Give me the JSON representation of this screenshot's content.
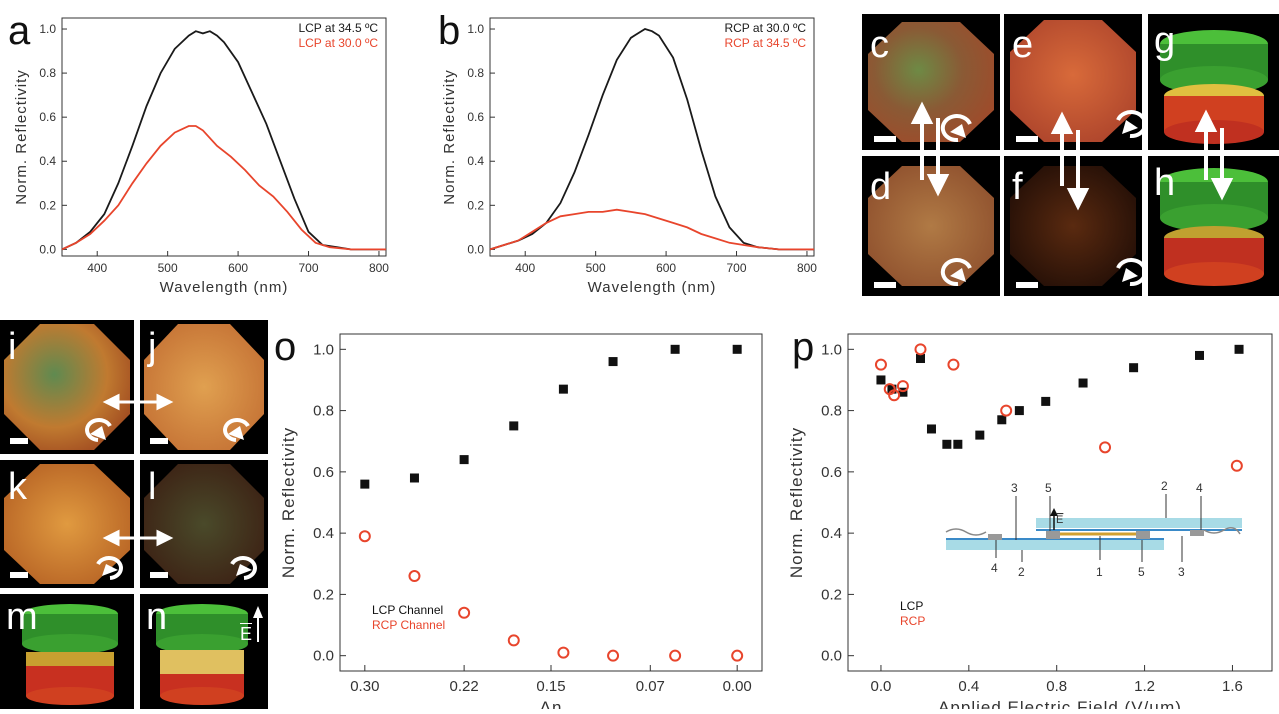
{
  "panel_labels": {
    "a": "a",
    "b": "b",
    "c": "c",
    "d": "d",
    "e": "e",
    "f": "f",
    "g": "g",
    "h": "h",
    "i": "i",
    "j": "j",
    "k": "k",
    "l": "l",
    "m": "m",
    "n": "n",
    "o": "o",
    "p": "p"
  },
  "e_field_label": "E",
  "colors": {
    "black": "#1a1a1a",
    "red": "#e8452c"
  },
  "chart_data": [
    {
      "id": "a",
      "type": "line",
      "xlabel": "Wavelength (nm)",
      "ylabel": "Norm. Reflectivity",
      "xlim": [
        350,
        810
      ],
      "ylim": [
        -0.03,
        1.05
      ],
      "xticks": [
        400,
        500,
        600,
        700,
        800
      ],
      "yticks": [
        0.0,
        0.2,
        0.4,
        0.6,
        0.8,
        1.0
      ],
      "legend": [
        "LCP at 34.5 ºC",
        "LCP at 30.0 ºC"
      ],
      "series": [
        {
          "name": "LCP at 34.5 ºC",
          "color": "#1a1a1a",
          "x": [
            350,
            370,
            390,
            410,
            430,
            450,
            470,
            490,
            510,
            530,
            540,
            550,
            560,
            570,
            580,
            600,
            620,
            640,
            660,
            680,
            700,
            720,
            740,
            760,
            780,
            800,
            810
          ],
          "y": [
            0.0,
            0.03,
            0.08,
            0.16,
            0.3,
            0.47,
            0.65,
            0.8,
            0.91,
            0.97,
            0.99,
            0.98,
            0.99,
            0.97,
            0.94,
            0.85,
            0.71,
            0.57,
            0.4,
            0.23,
            0.08,
            0.02,
            0.01,
            0.0,
            0.0,
            0.0,
            0.0
          ]
        },
        {
          "name": "LCP at 30.0 ºC",
          "color": "#e8452c",
          "x": [
            350,
            370,
            390,
            410,
            430,
            450,
            470,
            490,
            510,
            530,
            540,
            550,
            570,
            590,
            610,
            630,
            650,
            670,
            690,
            710,
            730,
            760,
            790,
            810
          ],
          "y": [
            0.0,
            0.03,
            0.07,
            0.13,
            0.2,
            0.3,
            0.39,
            0.47,
            0.53,
            0.56,
            0.56,
            0.54,
            0.47,
            0.42,
            0.36,
            0.29,
            0.24,
            0.17,
            0.09,
            0.03,
            0.01,
            0.0,
            0.0,
            0.0
          ]
        }
      ]
    },
    {
      "id": "b",
      "type": "line",
      "xlabel": "Wavelength (nm)",
      "ylabel": "Norm. Reflectivity",
      "xlim": [
        350,
        810
      ],
      "ylim": [
        -0.03,
        1.05
      ],
      "xticks": [
        400,
        500,
        600,
        700,
        800
      ],
      "yticks": [
        0.0,
        0.2,
        0.4,
        0.6,
        0.8,
        1.0
      ],
      "legend": [
        "RCP at 30.0 ºC",
        "RCP at 34.5 ºC"
      ],
      "series": [
        {
          "name": "RCP at 30.0 ºC",
          "color": "#1a1a1a",
          "x": [
            350,
            370,
            390,
            410,
            430,
            450,
            470,
            490,
            510,
            530,
            550,
            570,
            580,
            590,
            610,
            630,
            650,
            670,
            690,
            710,
            730,
            760,
            790,
            810
          ],
          "y": [
            0.0,
            0.02,
            0.04,
            0.07,
            0.12,
            0.21,
            0.35,
            0.52,
            0.7,
            0.86,
            0.96,
            1.0,
            0.99,
            0.97,
            0.87,
            0.68,
            0.45,
            0.24,
            0.1,
            0.03,
            0.01,
            0.0,
            0.0,
            0.0
          ]
        },
        {
          "name": "RCP at 34.5 ºC",
          "color": "#e8452c",
          "x": [
            350,
            370,
            390,
            410,
            430,
            450,
            470,
            490,
            510,
            530,
            550,
            570,
            590,
            610,
            630,
            650,
            670,
            690,
            710,
            730,
            760,
            790,
            810
          ],
          "y": [
            0.0,
            0.02,
            0.04,
            0.08,
            0.12,
            0.15,
            0.16,
            0.17,
            0.17,
            0.18,
            0.17,
            0.16,
            0.14,
            0.12,
            0.1,
            0.07,
            0.05,
            0.03,
            0.02,
            0.01,
            0.0,
            0.0,
            0.0
          ]
        }
      ]
    },
    {
      "id": "o",
      "type": "scatter",
      "xlabel": "Δn",
      "ylabel": "Norm. Reflectivity",
      "xticks": [
        "0.30",
        "0.22",
        "0.15",
        "0.07",
        "0.00"
      ],
      "yticks": [
        0.0,
        0.2,
        0.4,
        0.6,
        0.8,
        1.0
      ],
      "ylim": [
        -0.05,
        1.05
      ],
      "legend": [
        "LCP Channel",
        "RCP Channel"
      ],
      "series": [
        {
          "name": "LCP Channel",
          "marker": "square",
          "color": "#111111",
          "x": [
            0.3,
            0.26,
            0.22,
            0.18,
            0.14,
            0.1,
            0.05,
            0.0
          ],
          "y": [
            0.56,
            0.58,
            0.64,
            0.75,
            0.87,
            0.96,
            1.0,
            1.0
          ]
        },
        {
          "name": "RCP Channel",
          "marker": "circle",
          "color": "#e8452c",
          "x": [
            0.3,
            0.26,
            0.22,
            0.18,
            0.14,
            0.1,
            0.05,
            0.0
          ],
          "y": [
            0.39,
            0.26,
            0.14,
            0.05,
            0.01,
            0.0,
            0.0,
            0.0
          ]
        }
      ]
    },
    {
      "id": "p",
      "type": "scatter",
      "xlabel": "Applied Electric Field (V/µm)",
      "ylabel": "Norm. Reflectivity",
      "xlim": [
        -0.15,
        1.78
      ],
      "ylim": [
        -0.05,
        1.05
      ],
      "xticks": [
        "0.0",
        "0.4",
        "0.8",
        "1.2",
        "1.6"
      ],
      "xtick_values": [
        0.0,
        0.4,
        0.8,
        1.2,
        1.6
      ],
      "yticks": [
        0.0,
        0.2,
        0.4,
        0.6,
        0.8,
        1.0
      ],
      "legend": [
        "LCP",
        "RCP"
      ],
      "series": [
        {
          "name": "LCP",
          "marker": "square",
          "color": "#111111",
          "x": [
            0.0,
            0.05,
            0.1,
            0.18,
            0.23,
            0.3,
            0.35,
            0.45,
            0.55,
            0.63,
            0.75,
            0.92,
            1.15,
            1.45,
            1.63
          ],
          "y": [
            0.9,
            0.87,
            0.86,
            0.97,
            0.74,
            0.69,
            0.69,
            0.72,
            0.77,
            0.8,
            0.83,
            0.89,
            0.94,
            0.98,
            1.0
          ]
        },
        {
          "name": "RCP",
          "marker": "circle",
          "color": "#e8452c",
          "x": [
            0.0,
            0.04,
            0.06,
            0.1,
            0.18,
            0.33,
            0.57,
            1.02,
            1.62
          ],
          "y": [
            0.95,
            0.87,
            0.85,
            0.88,
            1.0,
            0.95,
            0.8,
            0.68,
            0.62
          ]
        }
      ]
    }
  ],
  "inset": {
    "labels_top": [
      "3",
      "5",
      "2",
      "4"
    ],
    "labels_bottom": [
      "4",
      "2",
      "1",
      "5",
      "3"
    ],
    "field_label": "E"
  }
}
